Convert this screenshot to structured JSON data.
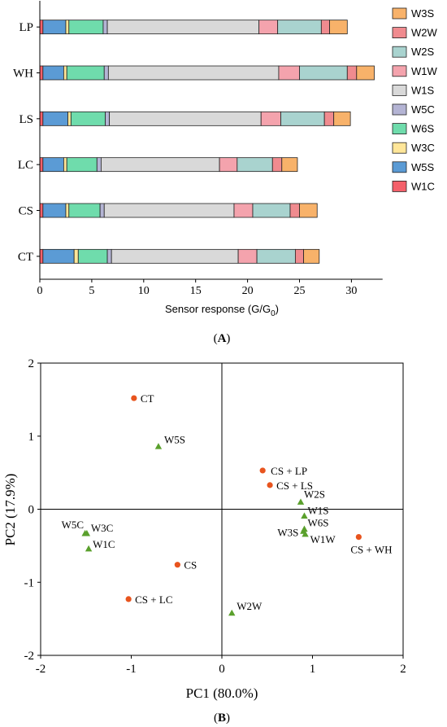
{
  "chart_data": [
    {
      "type": "bar",
      "orientation": "horizontal",
      "stacked": true,
      "panel_label": "A",
      "xlabel_main": "Sensor response (G/G",
      "xlabel_sub": "0",
      "xlabel_end": ")",
      "ylabel": "",
      "xlim": [
        0,
        33
      ],
      "xticks": [
        0,
        5,
        10,
        15,
        20,
        25,
        30
      ],
      "categories": [
        "LP",
        "WH",
        "LS",
        "LC",
        "CS",
        "CT"
      ],
      "legend_position": "right",
      "stack_order": [
        "W1C",
        "W5S",
        "W3C",
        "W6S",
        "W5C",
        "W1S",
        "W1W",
        "W2S",
        "W2W",
        "W3S"
      ],
      "legend_order": [
        "W3S",
        "W2W",
        "W2S",
        "W1W",
        "W1S",
        "W5C",
        "W6S",
        "W3C",
        "W5S",
        "W1C"
      ],
      "colors": {
        "W1C": "#f4606a",
        "W5S": "#5b9bd5",
        "W3C": "#ffe699",
        "W6S": "#6fdcac",
        "W5C": "#b4b4d4",
        "W1S": "#d9d9d9",
        "W1W": "#f4a3ad",
        "W2S": "#a9d3cf",
        "W2W": "#f08b8f",
        "W3S": "#f8b26a"
      },
      "series": [
        {
          "name": "W1C",
          "values": [
            0.3,
            0.3,
            0.3,
            0.3,
            0.3,
            0.3
          ]
        },
        {
          "name": "W5S",
          "values": [
            2.2,
            2.0,
            2.4,
            2.0,
            2.2,
            3.0
          ]
        },
        {
          "name": "W3C",
          "values": [
            0.3,
            0.3,
            0.3,
            0.3,
            0.3,
            0.4
          ]
        },
        {
          "name": "W6S",
          "values": [
            3.3,
            3.6,
            3.3,
            2.9,
            3.0,
            2.8
          ]
        },
        {
          "name": "W5C",
          "values": [
            0.4,
            0.4,
            0.4,
            0.4,
            0.4,
            0.4
          ]
        },
        {
          "name": "W1S",
          "values": [
            14.6,
            16.4,
            14.6,
            11.4,
            12.5,
            12.2
          ]
        },
        {
          "name": "W1W",
          "values": [
            1.8,
            2.0,
            1.9,
            1.7,
            1.8,
            1.8
          ]
        },
        {
          "name": "W2S",
          "values": [
            4.2,
            4.6,
            4.2,
            3.4,
            3.6,
            3.7
          ]
        },
        {
          "name": "W2W",
          "values": [
            0.8,
            0.9,
            0.9,
            0.9,
            0.9,
            0.8
          ]
        },
        {
          "name": "W3S",
          "values": [
            1.7,
            1.7,
            1.6,
            1.5,
            1.7,
            1.5
          ]
        }
      ]
    },
    {
      "type": "scatter",
      "panel_label": "B",
      "xlabel": "PC1 (80.0%)",
      "ylabel": "PC2 (17.9%)",
      "xlim": [
        -2,
        2
      ],
      "ylim": [
        -2,
        2
      ],
      "xticks": [
        -2,
        -1,
        0,
        1,
        2
      ],
      "yticks": [
        -2,
        -1,
        0,
        1,
        2
      ],
      "series": [
        {
          "marker": "circle",
          "color": "#e8541e",
          "points": [
            {
              "label": "CT",
              "x": -0.97,
              "y": 1.52
            },
            {
              "label": "CS + LP",
              "x": 0.45,
              "y": 0.53
            },
            {
              "label": "CS + LS",
              "x": 0.53,
              "y": 0.33
            },
            {
              "label": "CS",
              "x": -0.49,
              "y": -0.76
            },
            {
              "label": "CS + LC",
              "x": -1.03,
              "y": -1.23
            },
            {
              "label": "CS + WH",
              "x": 1.51,
              "y": -0.38
            }
          ]
        },
        {
          "marker": "triangle",
          "color": "#5aa02c",
          "points": [
            {
              "label": "W5S",
              "x": -0.7,
              "y": 0.86
            },
            {
              "label": "W2S",
              "x": 0.87,
              "y": 0.1
            },
            {
              "label": "W1S",
              "x": 0.91,
              "y": -0.09
            },
            {
              "label": "W6S",
              "x": 0.91,
              "y": -0.27
            },
            {
              "label": "W3S",
              "x": 0.9,
              "y": -0.3
            },
            {
              "label": "W1W",
              "x": 0.92,
              "y": -0.34
            },
            {
              "label": "W5C",
              "x": -1.51,
              "y": -0.33
            },
            {
              "label": "W3C",
              "x": -1.49,
              "y": -0.33
            },
            {
              "label": "W1C",
              "x": -1.47,
              "y": -0.54
            },
            {
              "label": "W2W",
              "x": 0.11,
              "y": -1.42
            }
          ]
        }
      ]
    }
  ]
}
